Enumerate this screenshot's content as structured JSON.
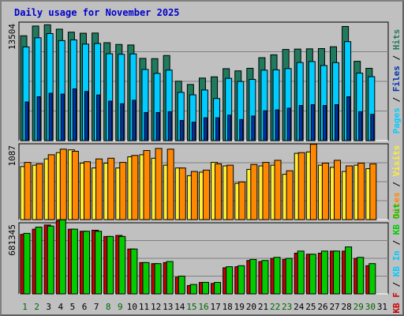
{
  "title": "Daily usage for November 2025",
  "colors": {
    "background": "#c0c0c0",
    "plot_bg": "#c0c0c0",
    "grid": "#808080",
    "hits": "#1f7a5e",
    "files": "#00ccff",
    "pages": "#0033aa",
    "visits": "#ffee33",
    "sites": "#ff8800",
    "kb_in": "#00cc00",
    "kb_out": "#cc0000",
    "weekday_label": "#006600",
    "weekend_label": "#000000",
    "title": "#0000cc"
  },
  "chart_data": [
    {
      "type": "bar",
      "panel": "hits-files-pages",
      "ymax_label": "13504",
      "ymax": 13504,
      "legend": [
        "Hits",
        "Files",
        "Pages"
      ],
      "categories": [
        "1",
        "2",
        "3",
        "4",
        "5",
        "6",
        "7",
        "8",
        "9",
        "10",
        "11",
        "12",
        "13",
        "14",
        "15",
        "16",
        "17",
        "18",
        "19",
        "20",
        "21",
        "22",
        "23",
        "24",
        "25",
        "26",
        "27",
        "28",
        "29",
        "30",
        "31"
      ],
      "series": [
        {
          "name": "Hits",
          "values": [
            11950,
            13060,
            13200,
            12700,
            12360,
            12240,
            12260,
            11160,
            10960,
            10900,
            9370,
            9340,
            9700,
            6770,
            6400,
            7130,
            7270,
            8200,
            7950,
            8240,
            9450,
            9780,
            10390,
            10430,
            10460,
            10490,
            10700,
            13010,
            9040,
            8240,
            0
          ],
          "name_label": "Hits"
        },
        {
          "name": "Files",
          "values": [
            10680,
            11720,
            12200,
            11400,
            11480,
            11000,
            11070,
            9900,
            9840,
            9880,
            8110,
            7660,
            8040,
            5500,
            5220,
            5770,
            4800,
            7100,
            6740,
            6980,
            8030,
            8070,
            8210,
            8900,
            9010,
            8560,
            8890,
            11280,
            7690,
            7290,
            0
          ]
        },
        {
          "name": "Pages",
          "values": [
            4400,
            5000,
            5400,
            5300,
            5900,
            5600,
            5200,
            4500,
            4200,
            4600,
            3200,
            3200,
            3300,
            2300,
            2100,
            2600,
            2600,
            2900,
            2400,
            2800,
            3400,
            3500,
            3700,
            4000,
            4100,
            4000,
            4100,
            5000,
            3300,
            3000,
            0
          ]
        }
      ]
    },
    {
      "type": "bar",
      "panel": "visits-sites",
      "ymax_label": "1087",
      "ymax": 1087,
      "legend": [
        "Visits",
        "Sites"
      ],
      "categories": [
        "1",
        "2",
        "3",
        "4",
        "5",
        "6",
        "7",
        "8",
        "9",
        "10",
        "11",
        "12",
        "13",
        "14",
        "15",
        "16",
        "17",
        "18",
        "19",
        "20",
        "21",
        "22",
        "23",
        "24",
        "25",
        "26",
        "27",
        "28",
        "29",
        "30",
        "31"
      ],
      "series": [
        {
          "name": "Visits",
          "values": [
            760,
            780,
            870,
            960,
            1000,
            810,
            740,
            810,
            740,
            900,
            930,
            880,
            780,
            740,
            630,
            680,
            820,
            770,
            520,
            720,
            770,
            780,
            650,
            950,
            970,
            780,
            750,
            690,
            780,
            730,
            0
          ]
        },
        {
          "name": "Sites",
          "values": [
            820,
            800,
            930,
            1010,
            980,
            830,
            870,
            880,
            820,
            920,
            990,
            1020,
            1010,
            740,
            690,
            710,
            800,
            780,
            540,
            790,
            820,
            850,
            700,
            960,
            1080,
            810,
            850,
            770,
            810,
            800,
            0
          ]
        }
      ]
    },
    {
      "type": "bar",
      "panel": "kbin-kbout",
      "ymax_label": "681345",
      "ymax": 681345,
      "legend": [
        "KB In",
        "KB Out",
        "KB F"
      ],
      "categories": [
        "1",
        "2",
        "3",
        "4",
        "5",
        "6",
        "7",
        "8",
        "9",
        "10",
        "11",
        "12",
        "13",
        "14",
        "15",
        "16",
        "17",
        "18",
        "19",
        "20",
        "21",
        "22",
        "23",
        "24",
        "25",
        "26",
        "27",
        "28",
        "29",
        "30",
        "31"
      ],
      "series": [
        {
          "name": "KB F",
          "values": [
            570000,
            620000,
            660000,
            700000,
            620000,
            600000,
            610000,
            550000,
            560000,
            430000,
            300000,
            290000,
            300000,
            160000,
            80000,
            110000,
            100000,
            250000,
            260000,
            320000,
            310000,
            340000,
            330000,
            390000,
            380000,
            390000,
            410000,
            410000,
            340000,
            270000,
            0
          ]
        },
        {
          "name": "KB In",
          "values": [
            580000,
            640000,
            650000,
            710000,
            620000,
            600000,
            600000,
            550000,
            550000,
            430000,
            300000,
            290000,
            310000,
            170000,
            90000,
            110000,
            110000,
            260000,
            270000,
            330000,
            320000,
            350000,
            340000,
            410000,
            380000,
            410000,
            410000,
            450000,
            350000,
            290000,
            0
          ]
        }
      ]
    }
  ]
}
